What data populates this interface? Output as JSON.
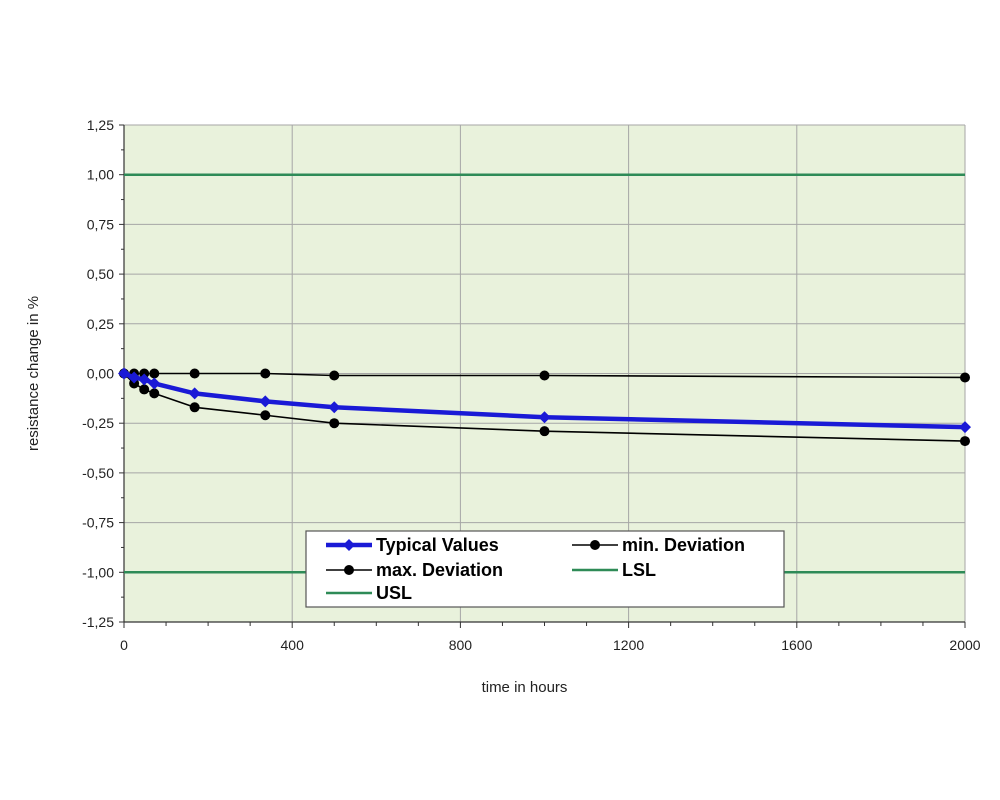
{
  "chart_data": {
    "type": "line",
    "title": "",
    "xlabel": "time in hours",
    "ylabel": "resistance change in %",
    "xlim": [
      0,
      2000
    ],
    "ylim": [
      -1.25,
      1.25
    ],
    "x_ticks": [
      0,
      400,
      800,
      1200,
      1600,
      2000
    ],
    "x_tick_labels": [
      "0",
      "400",
      "800",
      "1200",
      "1600",
      "2000"
    ],
    "x_minor_step": 100,
    "y_ticks": [
      1.25,
      1.0,
      0.75,
      0.5,
      0.25,
      0.0,
      -0.25,
      -0.5,
      -0.75,
      -1.0,
      -1.25
    ],
    "y_tick_labels": [
      "1,25",
      "1,00",
      "0,75",
      "0,50",
      "0,25",
      "0,00",
      "-0,25",
      "-0,50",
      "-0,75",
      "-1,00",
      "-1,25"
    ],
    "grid": true,
    "plot_background": "#e9f2dc",
    "grid_color": "#a6a6a6",
    "legend": {
      "placement": "bottom-center",
      "entries": [
        "Typical Values",
        "min. Deviation",
        "max. Deviation",
        "LSL",
        "USL"
      ]
    },
    "series": [
      {
        "name": "Typical Values",
        "color": "#1a1ad6",
        "marker": "diamond",
        "x": [
          0,
          24,
          48,
          72,
          168,
          336,
          500,
          1000,
          2000
        ],
        "y": [
          0.0,
          -0.02,
          -0.03,
          -0.05,
          -0.1,
          -0.14,
          -0.17,
          -0.22,
          -0.27
        ]
      },
      {
        "name": "min. Deviation",
        "color": "#000000",
        "marker": "circle",
        "x": [
          0,
          24,
          48,
          72,
          168,
          336,
          500,
          1000,
          2000
        ],
        "y": [
          0.0,
          0.0,
          0.0,
          0.0,
          0.0,
          0.0,
          -0.01,
          -0.01,
          -0.02
        ]
      },
      {
        "name": "max. Deviation",
        "color": "#000000",
        "marker": "circle",
        "x": [
          0,
          24,
          48,
          72,
          168,
          336,
          500,
          1000,
          2000
        ],
        "y": [
          0.0,
          -0.05,
          -0.08,
          -0.1,
          -0.17,
          -0.21,
          -0.25,
          -0.29,
          -0.34
        ]
      },
      {
        "name": "LSL",
        "color": "#2e8b57",
        "marker": "none",
        "x": [
          0,
          2000
        ],
        "y": [
          -1.0,
          -1.0
        ]
      },
      {
        "name": "USL",
        "color": "#2e8b57",
        "marker": "none",
        "x": [
          0,
          2000
        ],
        "y": [
          1.0,
          1.0
        ]
      }
    ]
  }
}
